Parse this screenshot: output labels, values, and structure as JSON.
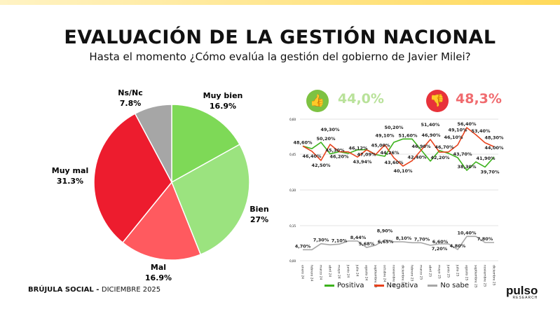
{
  "title": "EVALUACIÓN DE LA GESTIÓN NACIONAL",
  "subtitle": "Hasta el momento ¿Cómo evalúa la gestión del gobierno de Javier Milei?",
  "footer": {
    "brand": "BRÚJULA SOCIAL - ",
    "date": "DICIEMBRE 2025"
  },
  "logo": {
    "name": "pulso",
    "tag": "RESEARCH"
  },
  "kpis": {
    "positive": "44,0%",
    "negative": "48,3%",
    "positive_icon": "thumbs-up-icon",
    "negative_icon": "thumbs-down-icon",
    "positive_color": "#7dc242",
    "negative_color": "#e8323a"
  },
  "chart_data": [
    {
      "type": "pie",
      "slices": [
        {
          "label": "Muy bien",
          "value": 16.9,
          "text": "16.9%",
          "color": "#7ed957"
        },
        {
          "label": "Bien",
          "value": 27,
          "text": "27%",
          "color": "#9be37f"
        },
        {
          "label": "Mal",
          "value": 16.9,
          "text": "16.9%",
          "color": "#ff5a5f"
        },
        {
          "label": "Muy mal",
          "value": 31.3,
          "text": "31.3%",
          "color": "#ed1c2e"
        },
        {
          "label": "Ns/Nc",
          "value": 7.8,
          "text": "7.8%",
          "color": "#a6a6a6"
        }
      ]
    },
    {
      "type": "line",
      "upper_ylim": [
        0.3,
        0.6
      ],
      "upper_ticks": [
        "0,60",
        "0,45",
        "0,30"
      ],
      "lower_ylim": [
        0,
        0.15
      ],
      "lower_ticks": [
        "0,15",
        "0,00"
      ],
      "categories": [
        "enero 24",
        "febrero 24",
        "marzo 24",
        "abril 24",
        "mayo 24",
        "junio 24",
        "julio 24",
        "agosto 24",
        "septiembre 24",
        "octubre 24",
        "noviembre 24",
        "diciembre 24",
        "febrero 25",
        "marzo 25",
        "abril 25",
        "mayo 25",
        "junio 25",
        "julio 25",
        "agosto 25",
        "septiembre 25",
        "noviembre 25",
        "diciembre 25"
      ],
      "series": [
        {
          "name": "Positiva",
          "color": "#3cb21c",
          "values": [
            48.6,
            47.5,
            50.2,
            45.3,
            46.2,
            45.5,
            47.0,
            47.09,
            45.0,
            44.26,
            50.2,
            51.6,
            51.6,
            46.9,
            42.2,
            46.7,
            45.5,
            43.7,
            38.3,
            41.9,
            39.7,
            44.0
          ],
          "labels": [
            "48,60%",
            "",
            "50,20%",
            "45,30%",
            "46,20%",
            "",
            "",
            "47,09%",
            "45,00%",
            "44,26%",
            "50,20%",
            "51,60%",
            "",
            "46,90%",
            "42,20%",
            "46,70%",
            "",
            "43,70%",
            "38,30%",
            "41,90%",
            "39,70%",
            "44,00%"
          ]
        },
        {
          "name": "Negativa",
          "color": "#e8421c",
          "values": [
            48.6,
            46.4,
            42.5,
            49.3,
            46.2,
            46.12,
            43.94,
            47.0,
            45.0,
            49.1,
            43.6,
            40.1,
            42.4,
            46.9,
            51.4,
            46.0,
            46.1,
            49.1,
            56.4,
            53.4,
            50.0,
            48.3
          ],
          "labels": [
            "",
            "46,40%",
            "42,50%",
            "49,30%",
            "",
            "46,12%",
            "43,94%",
            "",
            "",
            "49,10%",
            "43,60%",
            "40,10%",
            "42,40%",
            "46,90%",
            "51,40%",
            "",
            "46,10%",
            "49,10%",
            "56,40%",
            "53,40%",
            "",
            "48,30%"
          ]
        },
        {
          "name": "No sabe",
          "color": "#a6a6a6",
          "values": [
            4.7,
            4.7,
            7.3,
            6.8,
            7.1,
            8.44,
            8.44,
            5.68,
            6.65,
            8.9,
            8.1,
            8.1,
            7.7,
            7.7,
            6.6,
            7.2,
            7.2,
            4.8,
            10.4,
            10.4,
            7.8,
            7.8
          ],
          "labels": [
            "4,70%",
            "",
            "7,30%",
            "",
            "7,10%",
            "8,44%",
            "",
            "5,68%",
            "6,65%",
            "8,90%",
            "8,10%",
            "",
            "7,70%",
            "",
            "6,60%",
            "7,20%",
            "",
            "4,80%",
            "10,40%",
            "",
            "7,80%",
            ""
          ]
        }
      ]
    }
  ]
}
